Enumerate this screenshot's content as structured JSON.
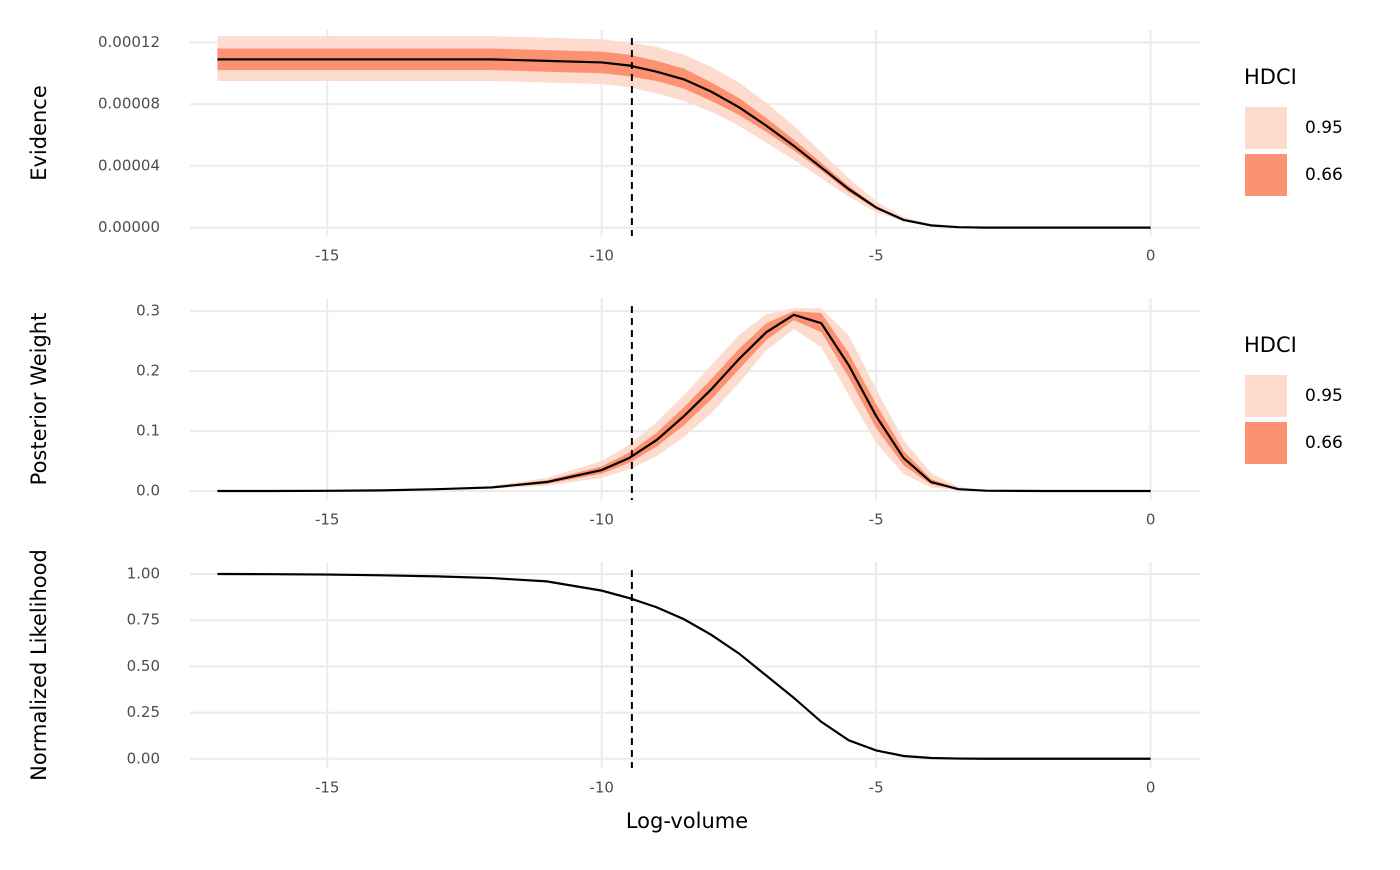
{
  "chart_data": [
    {
      "type": "line",
      "y_label": "Evidence",
      "x": [
        -17,
        -16,
        -15,
        -14,
        -13,
        -12,
        -11,
        -10,
        -9.5,
        -9,
        -8.5,
        -8,
        -7.5,
        -7,
        -6.5,
        -6,
        -5.5,
        -5,
        -4.5,
        -4,
        -3.5,
        -3,
        -2,
        -1,
        0
      ],
      "xlim": [
        -17.5,
        0.9
      ],
      "xticks": [
        -15,
        -10,
        -5,
        0
      ],
      "ylim": [
        -5.4e-06,
        0.000128
      ],
      "yticks": [
        {
          "value": 0,
          "label": "0.00000"
        },
        {
          "value": 4e-05,
          "label": "0.00004"
        },
        {
          "value": 8e-05,
          "label": "0.00008"
        },
        {
          "value": 0.00012,
          "label": "0.00012"
        }
      ],
      "grid": true,
      "vline": -9.45,
      "line": {
        "color": "#000000",
        "values": [
          0.000109,
          0.000109,
          0.000109,
          0.000109,
          0.000109,
          0.000109,
          0.000108,
          0.000107,
          0.000105,
          0.000101,
          9.6e-05,
          8.8e-05,
          7.8e-05,
          6.6e-05,
          5.3e-05,
          3.9e-05,
          2.5e-05,
          1.3e-05,
          5e-06,
          1.5e-06,
          3e-07,
          0,
          0,
          0,
          0
        ]
      },
      "legend_title": "HDCI",
      "bands": [
        {
          "name": "0.95",
          "color": "#fddccf",
          "low": [
            9.5e-05,
            9.5e-05,
            9.5e-05,
            9.5e-05,
            9.5e-05,
            9.5e-05,
            9.4e-05,
            9.3e-05,
            9.1e-05,
            8.7e-05,
            8.2e-05,
            7.5e-05,
            6.6e-05,
            5.5e-05,
            4.4e-05,
            3.2e-05,
            2e-05,
            1e-05,
            4e-06,
            1e-06,
            2e-07,
            0,
            0,
            0,
            0
          ],
          "high": [
            0.000124,
            0.000124,
            0.000124,
            0.000124,
            0.000124,
            0.000124,
            0.000123,
            0.000122,
            0.00012,
            0.000117,
            0.000112,
            0.000104,
            9.4e-05,
            8.1e-05,
            6.6e-05,
            4.9e-05,
            3.2e-05,
            1.7e-05,
            7e-06,
            2e-06,
            5e-07,
            0,
            0,
            0,
            0
          ]
        },
        {
          "name": "0.66",
          "color": "#fc9272",
          "low": [
            0.000102,
            0.000102,
            0.000102,
            0.000102,
            0.000102,
            0.000102,
            0.000101,
            0.0001,
            9.8e-05,
            9.5e-05,
            9e-05,
            8.2e-05,
            7.3e-05,
            6.2e-05,
            5e-05,
            3.7e-05,
            2.3e-05,
            1.2e-05,
            4.5e-06,
            1.3e-06,
            2e-07,
            0,
            0,
            0,
            0
          ],
          "high": [
            0.000116,
            0.000116,
            0.000116,
            0.000116,
            0.000116,
            0.000116,
            0.000115,
            0.000114,
            0.000112,
            0.000108,
            0.000103,
            9.4e-05,
            8.4e-05,
            7.1e-05,
            5.7e-05,
            4.2e-05,
            2.7e-05,
            1.4e-05,
            5.5e-06,
            1.7e-06,
            4e-07,
            0,
            0,
            0,
            0
          ]
        }
      ]
    },
    {
      "type": "line",
      "y_label": "Posterior Weight",
      "x": [
        -17,
        -16,
        -15,
        -14,
        -13,
        -12,
        -11,
        -10,
        -9.5,
        -9,
        -8.5,
        -8,
        -7.5,
        -7,
        -6.5,
        -6,
        -5.5,
        -5,
        -4.5,
        -4,
        -3.5,
        -3,
        -2,
        -1,
        0
      ],
      "xlim": [
        -17.5,
        0.9
      ],
      "xticks": [
        -15,
        -10,
        -5,
        0
      ],
      "ylim": [
        -0.015,
        0.322
      ],
      "yticks": [
        {
          "value": 0,
          "label": "0.0"
        },
        0.1,
        0.2,
        0.3
      ],
      "grid": true,
      "vline": -9.45,
      "line": {
        "color": "#000000",
        "values": [
          0,
          0,
          0.0003,
          0.001,
          0.003,
          0.006,
          0.015,
          0.035,
          0.055,
          0.085,
          0.125,
          0.17,
          0.22,
          0.265,
          0.294,
          0.28,
          0.21,
          0.125,
          0.055,
          0.015,
          0.003,
          0.0005,
          0,
          0,
          0
        ]
      },
      "legend_title": "HDCI",
      "bands": [
        {
          "name": "0.95",
          "color": "#fddccf",
          "low": [
            0,
            0,
            0.0002,
            0.0007,
            0.002,
            0.004,
            0.009,
            0.022,
            0.036,
            0.058,
            0.09,
            0.13,
            0.18,
            0.235,
            0.27,
            0.24,
            0.16,
            0.08,
            0.028,
            0.006,
            0.001,
            0,
            0,
            0,
            0
          ],
          "high": [
            0,
            0,
            0.0004,
            0.0014,
            0.004,
            0.009,
            0.022,
            0.05,
            0.077,
            0.115,
            0.16,
            0.21,
            0.26,
            0.295,
            0.305,
            0.305,
            0.26,
            0.17,
            0.085,
            0.03,
            0.007,
            0.001,
            0,
            0,
            0
          ]
        },
        {
          "name": "0.66",
          "color": "#fc9272",
          "low": [
            0,
            0,
            0.0003,
            0.0009,
            0.0025,
            0.005,
            0.012,
            0.029,
            0.047,
            0.074,
            0.11,
            0.153,
            0.203,
            0.252,
            0.285,
            0.265,
            0.19,
            0.105,
            0.043,
            0.011,
            0.002,
            0.0003,
            0,
            0,
            0
          ],
          "high": [
            0,
            0,
            0.0003,
            0.0011,
            0.0035,
            0.007,
            0.018,
            0.041,
            0.064,
            0.097,
            0.14,
            0.187,
            0.237,
            0.28,
            0.3,
            0.297,
            0.23,
            0.145,
            0.067,
            0.02,
            0.004,
            0.0007,
            0,
            0,
            0
          ]
        }
      ]
    },
    {
      "type": "line",
      "y_label": "Normalized Likelihood",
      "x_label": "Log-volume",
      "x": [
        -17,
        -16,
        -15,
        -14,
        -13,
        -12,
        -11,
        -10,
        -9.5,
        -9,
        -8.5,
        -8,
        -7.5,
        -7,
        -6.5,
        -6,
        -5.5,
        -5,
        -4.5,
        -4,
        -3.5,
        -3,
        -2,
        -1,
        0
      ],
      "xlim": [
        -17.5,
        0.9
      ],
      "xticks": [
        -15,
        -10,
        -5,
        0
      ],
      "ylim": [
        -0.05,
        1.065
      ],
      "yticks": [
        {
          "value": 0,
          "label": "0.00"
        },
        0.25,
        {
          "value": 0.5,
          "label": "0.50"
        },
        0.75,
        {
          "value": 1,
          "label": "1.00"
        }
      ],
      "grid": true,
      "vline": -9.45,
      "line": {
        "color": "#000000",
        "values": [
          1,
          0.999,
          0.997,
          0.993,
          0.987,
          0.978,
          0.96,
          0.91,
          0.87,
          0.82,
          0.755,
          0.67,
          0.57,
          0.45,
          0.33,
          0.2,
          0.1,
          0.045,
          0.015,
          0.004,
          0.001,
          0,
          0,
          0,
          0
        ]
      }
    }
  ]
}
